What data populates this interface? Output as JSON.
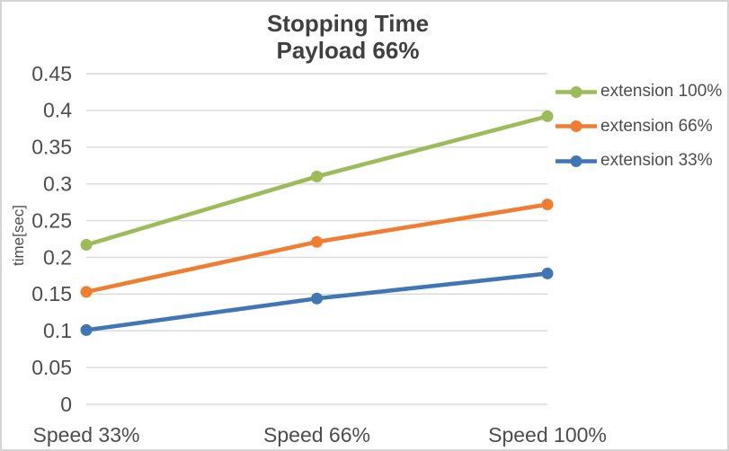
{
  "chart_data": {
    "type": "line",
    "title_line1": "Stopping Time",
    "title_line2": "Payload 66%",
    "ylabel": "time[sec]",
    "categories": [
      "Speed 33%",
      "Speed 66%",
      "Speed 100%"
    ],
    "series": [
      {
        "name": "extension 100%",
        "color": "#9CBB59",
        "values": [
          0.217,
          0.31,
          0.392
        ]
      },
      {
        "name": "extension 66%",
        "color": "#EF7E32",
        "values": [
          0.153,
          0.221,
          0.272
        ]
      },
      {
        "name": "extension 33%",
        "color": "#4076B4",
        "values": [
          0.101,
          0.144,
          0.178
        ]
      }
    ],
    "ylim": [
      0,
      0.45
    ],
    "ytick_step": 0.05,
    "yticks": [
      "0",
      "0.05",
      "0.1",
      "0.15",
      "0.2",
      "0.25",
      "0.3",
      "0.35",
      "0.4",
      "0.45"
    ],
    "grid": "horizontal",
    "legend_position": "right",
    "colors": {
      "gridline": "#D9D9D9",
      "tick_text": "#4D4D4D",
      "title_text": "#404040",
      "border": "#D5D5D5",
      "background": "#FFFFFF"
    }
  }
}
